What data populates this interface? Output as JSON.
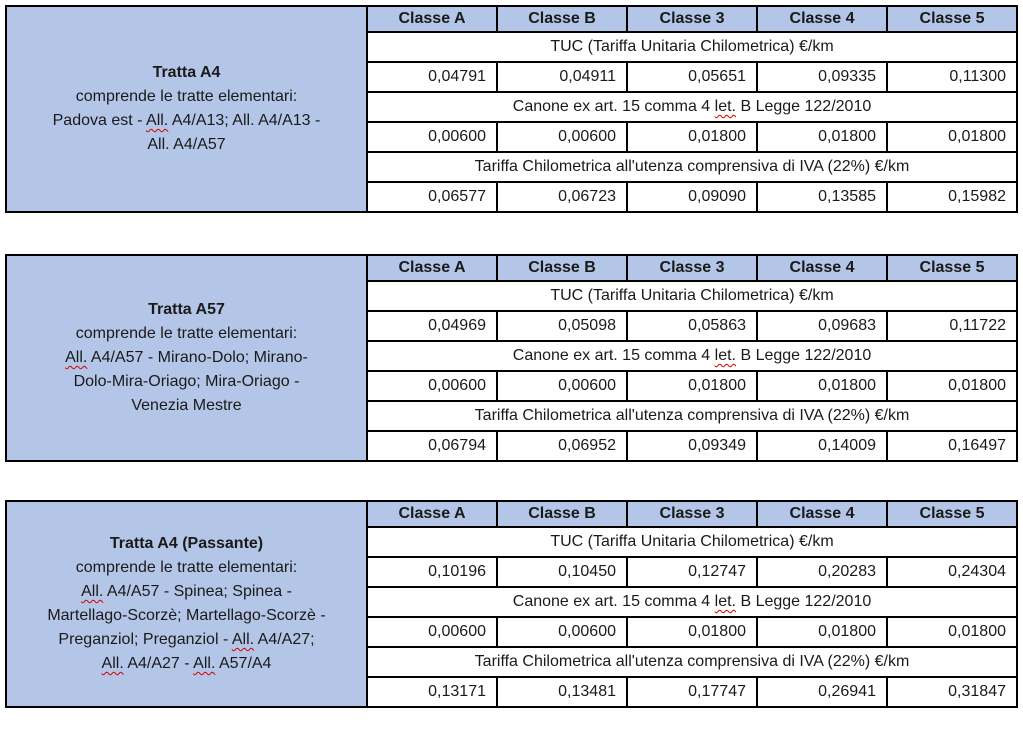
{
  "colors": {
    "accent": "#b4c6e7",
    "border": "#000000",
    "text": "#1a1a1a",
    "squiggle": "#d40000",
    "page-bg": "#ffffff"
  },
  "tables": [
    {
      "title": "Tratta A4",
      "description": [
        [
          {
            "t": "comprende le tratte elementari:"
          }
        ],
        [
          {
            "t": "Padova est - "
          },
          {
            "t": "All.",
            "sq": true
          },
          {
            "t": " A4/A13; All. A4/A13 -"
          }
        ],
        [
          {
            "t": "All. A4/A57"
          }
        ]
      ],
      "columns": [
        "Classe A",
        "Classe B",
        "Classe 3",
        "Classe 4",
        "Classe 5"
      ],
      "sections": [
        {
          "label": [
            {
              "t": "TUC (Tariffa Unitaria Chilometrica) €/km"
            }
          ],
          "values": [
            "0,04791",
            "0,04911",
            "0,05651",
            "0,09335",
            "0,11300"
          ]
        },
        {
          "label": [
            {
              "t": "Canone ex art. 15 comma 4 "
            },
            {
              "t": "let.",
              "sq": true
            },
            {
              "t": " B Legge 122/2010"
            }
          ],
          "values": [
            "0,00600",
            "0,00600",
            "0,01800",
            "0,01800",
            "0,01800"
          ]
        },
        {
          "label": [
            {
              "t": "Tariffa Chilometrica all'utenza comprensiva di IVA (22%) €/km"
            }
          ],
          "values": [
            "0,06577",
            "0,06723",
            "0,09090",
            "0,13585",
            "0,15982"
          ]
        }
      ]
    },
    {
      "title": "Tratta A57",
      "description": [
        [
          {
            "t": "comprende le tratte elementari:"
          }
        ],
        [
          {
            "t": "All.",
            "sq": true
          },
          {
            "t": " A4/A57 - Mirano-Dolo; Mirano-"
          }
        ],
        [
          {
            "t": "Dolo-Mira-Oriago; Mira-Oriago -"
          }
        ],
        [
          {
            "t": "Venezia Mestre"
          }
        ]
      ],
      "columns": [
        "Classe A",
        "Classe B",
        "Classe 3",
        "Classe 4",
        "Classe 5"
      ],
      "sections": [
        {
          "label": [
            {
              "t": "TUC (Tariffa Unitaria Chilometrica) €/km"
            }
          ],
          "values": [
            "0,04969",
            "0,05098",
            "0,05863",
            "0,09683",
            "0,11722"
          ]
        },
        {
          "label": [
            {
              "t": "Canone ex art. 15 comma 4 "
            },
            {
              "t": "let.",
              "sq": true
            },
            {
              "t": " B Legge 122/2010"
            }
          ],
          "values": [
            "0,00600",
            "0,00600",
            "0,01800",
            "0,01800",
            "0,01800"
          ]
        },
        {
          "label": [
            {
              "t": "Tariffa Chilometrica all'utenza comprensiva di IVA (22%) €/km"
            }
          ],
          "values": [
            "0,06794",
            "0,06952",
            "0,09349",
            "0,14009",
            "0,16497"
          ]
        }
      ]
    },
    {
      "title": "Tratta A4 (Passante)",
      "description": [
        [
          {
            "t": "comprende le tratte elementari:"
          }
        ],
        [
          {
            "t": "All.",
            "sq": true
          },
          {
            "t": " A4/A57 - Spinea; Spinea -"
          }
        ],
        [
          {
            "t": "Martellago-Scorzè; Martellago-Scorzè -"
          }
        ],
        [
          {
            "t": "Preganziol; Preganziol - "
          },
          {
            "t": "All.",
            "sq": true
          },
          {
            "t": " A4/A27;"
          }
        ],
        [
          {
            "t": "All.",
            "sq": true
          },
          {
            "t": " A4/A27 - "
          },
          {
            "t": "All.",
            "sq": true
          },
          {
            "t": " A57/A4"
          }
        ]
      ],
      "columns": [
        "Classe A",
        "Classe B",
        "Classe 3",
        "Classe 4",
        "Classe 5"
      ],
      "sections": [
        {
          "label": [
            {
              "t": "TUC (Tariffa Unitaria Chilometrica) €/km"
            }
          ],
          "values": [
            "0,10196",
            "0,10450",
            "0,12747",
            "0,20283",
            "0,24304"
          ]
        },
        {
          "label": [
            {
              "t": "Canone ex art. 15 comma 4 "
            },
            {
              "t": "let.",
              "sq": true
            },
            {
              "t": " B Legge 122/2010"
            }
          ],
          "values": [
            "0,00600",
            "0,00600",
            "0,01800",
            "0,01800",
            "0,01800"
          ]
        },
        {
          "label": [
            {
              "t": "Tariffa Chilometrica all'utenza comprensiva di IVA (22%) €/km"
            }
          ],
          "values": [
            "0,13171",
            "0,13481",
            "0,17747",
            "0,26941",
            "0,31847"
          ]
        }
      ]
    }
  ]
}
